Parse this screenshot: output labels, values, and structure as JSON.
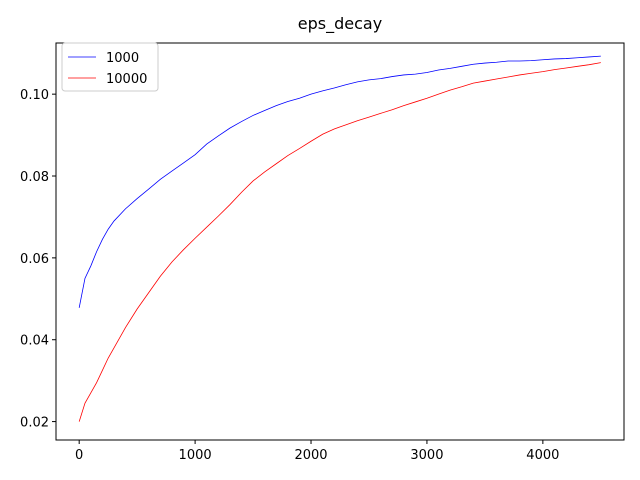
{
  "chart_data": {
    "type": "line",
    "title": "eps_decay",
    "xlabel": "",
    "ylabel": "",
    "xlim": [
      -200,
      4700
    ],
    "ylim": [
      0.0155,
      0.1125
    ],
    "xticks": [
      0,
      1000,
      2000,
      3000,
      4000
    ],
    "yticks": [
      0.02,
      0.04,
      0.06,
      0.08,
      0.1
    ],
    "ytick_labels": [
      "0.02",
      "0.04",
      "0.06",
      "0.08",
      "0.10"
    ],
    "grid": false,
    "legend_position": "top-left",
    "series": [
      {
        "name": "1000",
        "color": "#0000ff",
        "points": [
          [
            0,
            0.0478
          ],
          [
            50,
            0.055
          ],
          [
            100,
            0.058
          ],
          [
            150,
            0.0615
          ],
          [
            200,
            0.0645
          ],
          [
            250,
            0.067
          ],
          [
            300,
            0.069
          ],
          [
            400,
            0.072
          ],
          [
            500,
            0.0745
          ],
          [
            600,
            0.0768
          ],
          [
            700,
            0.0792
          ],
          [
            800,
            0.0812
          ],
          [
            900,
            0.0832
          ],
          [
            1000,
            0.0852
          ],
          [
            1100,
            0.0878
          ],
          [
            1200,
            0.0898
          ],
          [
            1300,
            0.0917
          ],
          [
            1400,
            0.0933
          ],
          [
            1500,
            0.0948
          ],
          [
            1600,
            0.096
          ],
          [
            1700,
            0.0972
          ],
          [
            1800,
            0.0982
          ],
          [
            1900,
            0.099
          ],
          [
            2000,
            0.1
          ],
          [
            2100,
            0.1008
          ],
          [
            2200,
            0.1015
          ],
          [
            2300,
            0.1023
          ],
          [
            2400,
            0.103
          ],
          [
            2500,
            0.1035
          ],
          [
            2600,
            0.1038
          ],
          [
            2700,
            0.1043
          ],
          [
            2800,
            0.1047
          ],
          [
            2900,
            0.1049
          ],
          [
            3000,
            0.1053
          ],
          [
            3100,
            0.1059
          ],
          [
            3200,
            0.1063
          ],
          [
            3300,
            0.1068
          ],
          [
            3400,
            0.1073
          ],
          [
            3500,
            0.1076
          ],
          [
            3600,
            0.1078
          ],
          [
            3700,
            0.1081
          ],
          [
            3800,
            0.1081
          ],
          [
            3900,
            0.1082
          ],
          [
            4000,
            0.1084
          ],
          [
            4100,
            0.1086
          ],
          [
            4200,
            0.1087
          ],
          [
            4300,
            0.1089
          ],
          [
            4400,
            0.1091
          ],
          [
            4500,
            0.1093
          ]
        ]
      },
      {
        "name": "10000",
        "color": "#ff0000",
        "points": [
          [
            0,
            0.02
          ],
          [
            50,
            0.0245
          ],
          [
            100,
            0.027
          ],
          [
            150,
            0.0295
          ],
          [
            200,
            0.0325
          ],
          [
            250,
            0.0355
          ],
          [
            300,
            0.038
          ],
          [
            400,
            0.043
          ],
          [
            500,
            0.0475
          ],
          [
            600,
            0.0515
          ],
          [
            700,
            0.0555
          ],
          [
            800,
            0.059
          ],
          [
            900,
            0.062
          ],
          [
            1000,
            0.0648
          ],
          [
            1100,
            0.0675
          ],
          [
            1200,
            0.0702
          ],
          [
            1300,
            0.073
          ],
          [
            1400,
            0.076
          ],
          [
            1500,
            0.0788
          ],
          [
            1600,
            0.081
          ],
          [
            1700,
            0.083
          ],
          [
            1800,
            0.085
          ],
          [
            1900,
            0.0867
          ],
          [
            2000,
            0.0885
          ],
          [
            2100,
            0.0902
          ],
          [
            2200,
            0.0915
          ],
          [
            2300,
            0.0925
          ],
          [
            2400,
            0.0935
          ],
          [
            2500,
            0.0944
          ],
          [
            2600,
            0.0953
          ],
          [
            2700,
            0.0962
          ],
          [
            2800,
            0.0972
          ],
          [
            2900,
            0.0981
          ],
          [
            3000,
            0.099
          ],
          [
            3100,
            0.1
          ],
          [
            3200,
            0.101
          ],
          [
            3300,
            0.1018
          ],
          [
            3400,
            0.1027
          ],
          [
            3500,
            0.1032
          ],
          [
            3600,
            0.1037
          ],
          [
            3700,
            0.1042
          ],
          [
            3800,
            0.1047
          ],
          [
            3900,
            0.1051
          ],
          [
            4000,
            0.1055
          ],
          [
            4100,
            0.106
          ],
          [
            4200,
            0.1064
          ],
          [
            4300,
            0.1068
          ],
          [
            4400,
            0.1072
          ],
          [
            4500,
            0.1077
          ]
        ]
      }
    ]
  }
}
